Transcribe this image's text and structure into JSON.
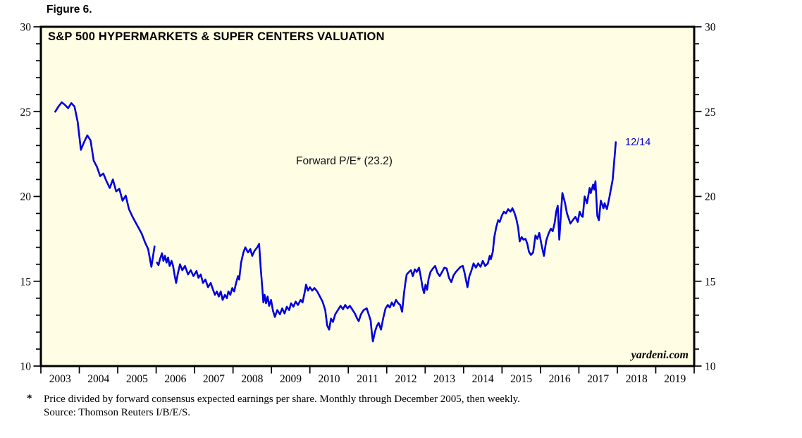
{
  "figure_label": "Figure 6.",
  "chart": {
    "title": "S&P 500 HYPERMARKETS & SUPER CENTERS VALUATION",
    "series_label": "Forward P/E* (23.2)",
    "last_point_label": "12/14",
    "watermark": "yardeni.com",
    "colors": {
      "line": "#0000dd",
      "plot_bg": "#fffee4",
      "frame": "#000000",
      "annotation_blue": "#0000cc",
      "text": "#000000"
    }
  },
  "footnote": {
    "asterisk": "*",
    "line1": "Price divided by forward consensus expected earnings per share. Monthly through December 2005, then weekly.",
    "line2": "Source: Thomson Reuters I/B/E/S."
  },
  "chart_data": {
    "type": "line",
    "title": "S&P 500 HYPERMARKETS & SUPER CENTERS VALUATION",
    "xlabel": "",
    "ylabel": "Forward P/E",
    "y_axis": {
      "min": 10,
      "max": 30,
      "major_ticks": [
        10,
        15,
        20,
        25,
        30
      ],
      "minor_step": 1,
      "sides": [
        "left",
        "right"
      ]
    },
    "x_axis": {
      "min": 2003,
      "max": 2020,
      "year_labels": [
        "2003",
        "2004",
        "2005",
        "2006",
        "2007",
        "2008",
        "2009",
        "2010",
        "2011",
        "2012",
        "2013",
        "2014",
        "2015",
        "2016",
        "2017",
        "2018",
        "2019"
      ]
    },
    "grid": false,
    "legend": "none",
    "annotations": [
      {
        "text": "Forward P/E* (23.2)",
        "x": 2009.7,
        "y": 22.3
      },
      {
        "text": "12/14",
        "x": 2018.2,
        "y": 23.1,
        "color": "#0000cc"
      }
    ],
    "series": [
      {
        "name": "Forward P/E (monthly through Dec 2005)",
        "points": [
          [
            2003.375,
            25.0
          ],
          [
            2003.458,
            25.3
          ],
          [
            2003.542,
            25.55
          ],
          [
            2003.625,
            25.4
          ],
          [
            2003.708,
            25.2
          ],
          [
            2003.792,
            25.5
          ],
          [
            2003.875,
            25.3
          ],
          [
            2003.958,
            24.4
          ],
          [
            2004.042,
            22.75
          ],
          [
            2004.125,
            23.2
          ],
          [
            2004.208,
            23.6
          ],
          [
            2004.292,
            23.3
          ],
          [
            2004.375,
            22.1
          ],
          [
            2004.458,
            21.75
          ],
          [
            2004.542,
            21.2
          ],
          [
            2004.625,
            21.35
          ],
          [
            2004.708,
            20.9
          ],
          [
            2004.792,
            20.5
          ],
          [
            2004.875,
            21.0
          ],
          [
            2004.958,
            20.3
          ],
          [
            2005.042,
            20.45
          ],
          [
            2005.125,
            19.75
          ],
          [
            2005.208,
            20.05
          ],
          [
            2005.292,
            19.25
          ],
          [
            2005.375,
            18.85
          ],
          [
            2005.458,
            18.5
          ],
          [
            2005.542,
            18.15
          ],
          [
            2005.625,
            17.8
          ],
          [
            2005.708,
            17.3
          ],
          [
            2005.792,
            16.9
          ],
          [
            2005.875,
            15.85
          ],
          [
            2005.958,
            17.05
          ]
        ]
      },
      {
        "name": "Forward P/E (weekly from Jan 2006)",
        "points": [
          [
            2006.02,
            16.1
          ],
          [
            2006.06,
            15.95
          ],
          [
            2006.1,
            16.3
          ],
          [
            2006.15,
            16.65
          ],
          [
            2006.19,
            16.2
          ],
          [
            2006.23,
            16.5
          ],
          [
            2006.27,
            16.1
          ],
          [
            2006.31,
            16.4
          ],
          [
            2006.35,
            15.9
          ],
          [
            2006.4,
            16.2
          ],
          [
            2006.44,
            15.9
          ],
          [
            2006.48,
            15.35
          ],
          [
            2006.52,
            14.9
          ],
          [
            2006.56,
            15.4
          ],
          [
            2006.62,
            16.0
          ],
          [
            2006.68,
            15.65
          ],
          [
            2006.75,
            15.9
          ],
          [
            2006.83,
            15.4
          ],
          [
            2006.9,
            15.65
          ],
          [
            2006.97,
            15.3
          ],
          [
            2007.05,
            15.6
          ],
          [
            2007.1,
            15.2
          ],
          [
            2007.16,
            15.4
          ],
          [
            2007.22,
            14.9
          ],
          [
            2007.28,
            15.1
          ],
          [
            2007.35,
            14.65
          ],
          [
            2007.42,
            14.9
          ],
          [
            2007.48,
            14.5
          ],
          [
            2007.53,
            14.2
          ],
          [
            2007.58,
            14.4
          ],
          [
            2007.63,
            14.1
          ],
          [
            2007.68,
            14.4
          ],
          [
            2007.73,
            13.9
          ],
          [
            2007.79,
            14.2
          ],
          [
            2007.84,
            14.0
          ],
          [
            2007.88,
            14.4
          ],
          [
            2007.93,
            14.2
          ],
          [
            2007.98,
            14.6
          ],
          [
            2008.03,
            14.4
          ],
          [
            2008.08,
            14.9
          ],
          [
            2008.13,
            15.3
          ],
          [
            2008.16,
            15.1
          ],
          [
            2008.21,
            16.1
          ],
          [
            2008.27,
            16.7
          ],
          [
            2008.32,
            17.0
          ],
          [
            2008.39,
            16.7
          ],
          [
            2008.45,
            16.9
          ],
          [
            2008.5,
            16.5
          ],
          [
            2008.56,
            16.8
          ],
          [
            2008.63,
            17.0
          ],
          [
            2008.68,
            17.2
          ],
          [
            2008.72,
            15.8
          ],
          [
            2008.76,
            14.65
          ],
          [
            2008.79,
            13.75
          ],
          [
            2008.82,
            14.2
          ],
          [
            2008.86,
            13.7
          ],
          [
            2008.9,
            14.1
          ],
          [
            2008.94,
            13.55
          ],
          [
            2008.99,
            13.9
          ],
          [
            2009.04,
            13.25
          ],
          [
            2009.09,
            12.9
          ],
          [
            2009.15,
            13.3
          ],
          [
            2009.22,
            13.05
          ],
          [
            2009.28,
            13.4
          ],
          [
            2009.34,
            13.1
          ],
          [
            2009.4,
            13.5
          ],
          [
            2009.46,
            13.3
          ],
          [
            2009.51,
            13.7
          ],
          [
            2009.57,
            13.5
          ],
          [
            2009.63,
            13.8
          ],
          [
            2009.69,
            13.6
          ],
          [
            2009.76,
            13.9
          ],
          [
            2009.81,
            13.75
          ],
          [
            2009.86,
            14.3
          ],
          [
            2009.9,
            14.8
          ],
          [
            2009.95,
            14.45
          ],
          [
            2010.0,
            14.65
          ],
          [
            2010.06,
            14.45
          ],
          [
            2010.12,
            14.6
          ],
          [
            2010.19,
            14.4
          ],
          [
            2010.26,
            14.1
          ],
          [
            2010.33,
            13.8
          ],
          [
            2010.4,
            13.3
          ],
          [
            2010.45,
            12.4
          ],
          [
            2010.5,
            12.15
          ],
          [
            2010.55,
            12.8
          ],
          [
            2010.6,
            12.6
          ],
          [
            2010.66,
            13.05
          ],
          [
            2010.73,
            13.3
          ],
          [
            2010.8,
            13.55
          ],
          [
            2010.86,
            13.35
          ],
          [
            2010.92,
            13.6
          ],
          [
            2010.98,
            13.4
          ],
          [
            2011.04,
            13.55
          ],
          [
            2011.1,
            13.35
          ],
          [
            2011.17,
            13.1
          ],
          [
            2011.23,
            12.8
          ],
          [
            2011.27,
            12.65
          ],
          [
            2011.33,
            13.05
          ],
          [
            2011.4,
            13.3
          ],
          [
            2011.48,
            13.4
          ],
          [
            2011.53,
            13.05
          ],
          [
            2011.58,
            12.7
          ],
          [
            2011.61,
            12.0
          ],
          [
            2011.64,
            11.45
          ],
          [
            2011.69,
            12.0
          ],
          [
            2011.74,
            12.35
          ],
          [
            2011.79,
            12.55
          ],
          [
            2011.85,
            12.15
          ],
          [
            2011.91,
            12.85
          ],
          [
            2011.97,
            13.4
          ],
          [
            2012.03,
            13.6
          ],
          [
            2012.08,
            13.45
          ],
          [
            2012.13,
            13.75
          ],
          [
            2012.18,
            13.55
          ],
          [
            2012.24,
            13.9
          ],
          [
            2012.3,
            13.7
          ],
          [
            2012.35,
            13.6
          ],
          [
            2012.4,
            13.2
          ],
          [
            2012.45,
            14.3
          ],
          [
            2012.49,
            15.0
          ],
          [
            2012.52,
            15.4
          ],
          [
            2012.58,
            15.55
          ],
          [
            2012.63,
            15.65
          ],
          [
            2012.68,
            15.3
          ],
          [
            2012.73,
            15.7
          ],
          [
            2012.78,
            15.55
          ],
          [
            2012.84,
            15.8
          ],
          [
            2012.89,
            15.2
          ],
          [
            2012.93,
            14.65
          ],
          [
            2012.97,
            14.3
          ],
          [
            2013.01,
            14.8
          ],
          [
            2013.05,
            14.5
          ],
          [
            2013.09,
            15.15
          ],
          [
            2013.14,
            15.55
          ],
          [
            2013.2,
            15.75
          ],
          [
            2013.26,
            15.9
          ],
          [
            2013.32,
            15.5
          ],
          [
            2013.38,
            15.3
          ],
          [
            2013.44,
            15.55
          ],
          [
            2013.5,
            15.8
          ],
          [
            2013.56,
            15.75
          ],
          [
            2013.62,
            15.2
          ],
          [
            2013.68,
            14.95
          ],
          [
            2013.74,
            15.35
          ],
          [
            2013.8,
            15.55
          ],
          [
            2013.86,
            15.7
          ],
          [
            2013.92,
            15.85
          ],
          [
            2013.98,
            15.9
          ],
          [
            2014.02,
            15.55
          ],
          [
            2014.06,
            15.1
          ],
          [
            2014.1,
            14.65
          ],
          [
            2014.15,
            15.3
          ],
          [
            2014.2,
            15.6
          ],
          [
            2014.26,
            16.05
          ],
          [
            2014.32,
            15.8
          ],
          [
            2014.38,
            16.05
          ],
          [
            2014.44,
            15.85
          ],
          [
            2014.5,
            16.2
          ],
          [
            2014.56,
            15.9
          ],
          [
            2014.63,
            16.05
          ],
          [
            2014.68,
            16.5
          ],
          [
            2014.71,
            16.3
          ],
          [
            2014.76,
            16.75
          ],
          [
            2014.8,
            17.6
          ],
          [
            2014.85,
            18.2
          ],
          [
            2014.9,
            18.6
          ],
          [
            2014.94,
            18.5
          ],
          [
            2015.0,
            18.9
          ],
          [
            2015.05,
            19.1
          ],
          [
            2015.1,
            19.0
          ],
          [
            2015.16,
            19.25
          ],
          [
            2015.22,
            19.1
          ],
          [
            2015.27,
            19.3
          ],
          [
            2015.32,
            19.05
          ],
          [
            2015.37,
            18.7
          ],
          [
            2015.42,
            18.15
          ],
          [
            2015.46,
            17.35
          ],
          [
            2015.51,
            17.6
          ],
          [
            2015.56,
            17.45
          ],
          [
            2015.61,
            17.5
          ],
          [
            2015.66,
            17.2
          ],
          [
            2015.7,
            16.75
          ],
          [
            2015.75,
            16.55
          ],
          [
            2015.81,
            16.7
          ],
          [
            2015.87,
            17.7
          ],
          [
            2015.92,
            17.5
          ],
          [
            2015.97,
            17.85
          ],
          [
            2016.04,
            17.0
          ],
          [
            2016.09,
            16.5
          ],
          [
            2016.15,
            17.4
          ],
          [
            2016.21,
            17.8
          ],
          [
            2016.27,
            18.1
          ],
          [
            2016.32,
            17.95
          ],
          [
            2016.37,
            18.45
          ],
          [
            2016.41,
            19.1
          ],
          [
            2016.45,
            19.45
          ],
          [
            2016.49,
            17.45
          ],
          [
            2016.54,
            19.2
          ],
          [
            2016.57,
            20.2
          ],
          [
            2016.64,
            19.6
          ],
          [
            2016.69,
            19.0
          ],
          [
            2016.78,
            18.4
          ],
          [
            2016.84,
            18.6
          ],
          [
            2016.91,
            18.8
          ],
          [
            2016.97,
            18.5
          ],
          [
            2017.02,
            19.1
          ],
          [
            2017.07,
            18.85
          ],
          [
            2017.1,
            18.8
          ],
          [
            2017.15,
            20.0
          ],
          [
            2017.21,
            19.6
          ],
          [
            2017.28,
            20.5
          ],
          [
            2017.31,
            20.2
          ],
          [
            2017.37,
            20.7
          ],
          [
            2017.4,
            20.4
          ],
          [
            2017.43,
            20.9
          ],
          [
            2017.48,
            18.85
          ],
          [
            2017.52,
            18.6
          ],
          [
            2017.57,
            19.75
          ],
          [
            2017.64,
            19.3
          ],
          [
            2017.67,
            19.6
          ],
          [
            2017.73,
            19.25
          ],
          [
            2017.79,
            19.9
          ],
          [
            2017.83,
            20.4
          ],
          [
            2017.88,
            21.0
          ],
          [
            2017.92,
            22.1
          ],
          [
            2017.96,
            23.2
          ]
        ]
      }
    ]
  }
}
